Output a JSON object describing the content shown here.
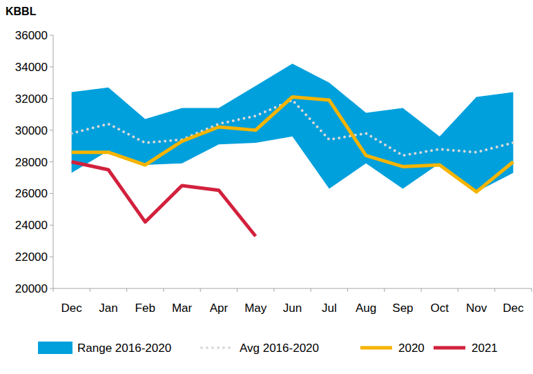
{
  "chart_data": {
    "type": "line",
    "ylabel": "KBBL",
    "categories": [
      "Dec",
      "Jan",
      "Feb",
      "Mar",
      "Apr",
      "May",
      "Jun",
      "Jul",
      "Aug",
      "Sep",
      "Oct",
      "Nov",
      "Dec"
    ],
    "ylim": [
      20000,
      36000
    ],
    "yticks": [
      20000,
      22000,
      24000,
      26000,
      28000,
      30000,
      32000,
      34000,
      36000
    ],
    "grid": false,
    "legend": "bottom",
    "series": [
      {
        "name": "Range 2016-2020",
        "type": "area",
        "color": "#00a0dc",
        "values": [
          32400,
          32700,
          30700,
          31400,
          31400,
          32800,
          34200,
          33000,
          31100,
          31400,
          29600,
          32100,
          32400
        ],
        "low": [
          27300,
          28700,
          27800,
          27900,
          29100,
          29200,
          29600,
          26300,
          27900,
          26300,
          27900,
          26100,
          27300
        ]
      },
      {
        "name": "Avg 2016-2020",
        "type": "line",
        "color": "#d9d9d9",
        "line_style": "dotted",
        "values": [
          29800,
          30400,
          29200,
          29400,
          30400,
          30900,
          31900,
          29400,
          29800,
          28400,
          28800,
          28600,
          29200
        ]
      },
      {
        "name": "2020",
        "type": "line",
        "color": "#f5b400",
        "line_style": "solid",
        "values": [
          28600,
          28600,
          27800,
          29300,
          30200,
          30000,
          32100,
          31900,
          28400,
          27700,
          27800,
          26100,
          28000
        ]
      },
      {
        "name": "2021",
        "type": "line",
        "color": "#d2213d",
        "line_style": "solid",
        "values": [
          28000,
          27500,
          24200,
          26500,
          26200,
          23300,
          null,
          null,
          null,
          null,
          null,
          null,
          null
        ]
      }
    ]
  }
}
